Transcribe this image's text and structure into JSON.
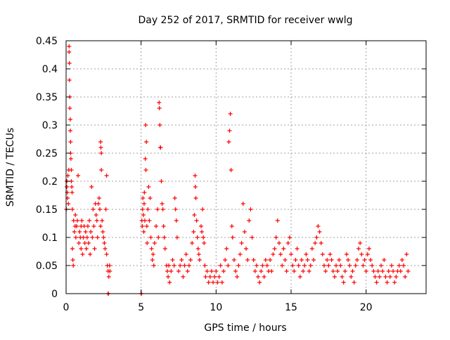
{
  "chart_data": {
    "type": "scatter",
    "title": "Day 252 of 2017, SRMTID for receiver wwlg",
    "xlabel": "GPS time / hours",
    "ylabel": "SRMTID / TECUs",
    "xlim": [
      0,
      24
    ],
    "ylim": [
      0,
      0.45
    ],
    "x_ticks": [
      0,
      5,
      10,
      15,
      20
    ],
    "x_tick_labels": [
      "0",
      "5",
      "10",
      "15",
      "20"
    ],
    "y_ticks": [
      0,
      0.05,
      0.1,
      0.15,
      0.2,
      0.25,
      0.3,
      0.35,
      0.4,
      0.45
    ],
    "y_tick_labels": [
      "0",
      "0.05",
      "0.1",
      "0.15",
      "0.2",
      "0.25",
      "0.3",
      "0.35",
      "0.4",
      "0.45"
    ],
    "grid": true,
    "series": [
      {
        "name": "SRMTID",
        "marker": "plus",
        "color": "#ff0000",
        "points": [
          [
            0.02,
            0.15
          ],
          [
            0.05,
            0.19
          ],
          [
            0.05,
            0.2
          ],
          [
            0.08,
            0.18
          ],
          [
            0.1,
            0.17
          ],
          [
            0.12,
            0.21
          ],
          [
            0.15,
            0.16
          ],
          [
            0.18,
            0.22
          ],
          [
            0.2,
            0.44
          ],
          [
            0.2,
            0.43
          ],
          [
            0.22,
            0.41
          ],
          [
            0.22,
            0.38
          ],
          [
            0.25,
            0.35
          ],
          [
            0.25,
            0.33
          ],
          [
            0.28,
            0.31
          ],
          [
            0.28,
            0.29
          ],
          [
            0.3,
            0.25
          ],
          [
            0.3,
            0.27
          ],
          [
            0.32,
            0.24
          ],
          [
            0.35,
            0.22
          ],
          [
            0.35,
            0.2
          ],
          [
            0.38,
            0.19
          ],
          [
            0.4,
            0.18
          ],
          [
            0.42,
            0.15
          ],
          [
            0.42,
            0.08
          ],
          [
            0.45,
            0.06
          ],
          [
            0.48,
            0.05
          ],
          [
            0.5,
            0.13
          ],
          [
            0.55,
            0.11
          ],
          [
            0.6,
            0.12
          ],
          [
            0.62,
            0.14
          ],
          [
            0.65,
            0.1
          ],
          [
            0.7,
            0.12
          ],
          [
            0.75,
            0.13
          ],
          [
            0.8,
            0.21
          ],
          [
            0.85,
            0.09
          ],
          [
            0.9,
            0.11
          ],
          [
            0.95,
            0.1
          ],
          [
            1.0,
            0.08
          ],
          [
            1.0,
            0.12
          ],
          [
            1.05,
            0.13
          ],
          [
            1.1,
            0.07
          ],
          [
            1.15,
            0.1
          ],
          [
            1.2,
            0.12
          ],
          [
            1.25,
            0.09
          ],
          [
            1.3,
            0.11
          ],
          [
            1.35,
            0.08
          ],
          [
            1.4,
            0.1
          ],
          [
            1.45,
            0.12
          ],
          [
            1.5,
            0.09
          ],
          [
            1.55,
            0.13
          ],
          [
            1.6,
            0.07
          ],
          [
            1.65,
            0.11
          ],
          [
            1.7,
            0.19
          ],
          [
            1.75,
            0.1
          ],
          [
            1.8,
            0.15
          ],
          [
            1.85,
            0.12
          ],
          [
            1.9,
            0.08
          ],
          [
            1.95,
            0.16
          ],
          [
            2.0,
            0.14
          ],
          [
            2.05,
            0.13
          ],
          [
            2.1,
            0.1
          ],
          [
            2.15,
            0.16
          ],
          [
            2.2,
            0.17
          ],
          [
            2.25,
            0.15
          ],
          [
            2.3,
            0.12
          ],
          [
            2.3,
            0.27
          ],
          [
            2.32,
            0.26
          ],
          [
            2.35,
            0.25
          ],
          [
            2.35,
            0.22
          ],
          [
            2.4,
            0.13
          ],
          [
            2.45,
            0.11
          ],
          [
            2.5,
            0.1
          ],
          [
            2.55,
            0.09
          ],
          [
            2.6,
            0.08
          ],
          [
            2.65,
            0.15
          ],
          [
            2.7,
            0.07
          ],
          [
            2.7,
            0.21
          ],
          [
            2.75,
            0.05
          ],
          [
            2.8,
            0.04
          ],
          [
            2.85,
            0.03
          ],
          [
            2.9,
            0.05
          ],
          [
            2.92,
            0.04
          ],
          [
            2.8,
            0.0
          ],
          [
            2.82,
            0.0
          ],
          [
            5.0,
            0.0
          ],
          [
            5.02,
            0.0
          ],
          [
            5.05,
            0.13
          ],
          [
            5.08,
            0.12
          ],
          [
            5.1,
            0.15
          ],
          [
            5.12,
            0.17
          ],
          [
            5.15,
            0.14
          ],
          [
            5.18,
            0.11
          ],
          [
            5.2,
            0.16
          ],
          [
            5.22,
            0.18
          ],
          [
            5.25,
            0.13
          ],
          [
            5.28,
            0.24
          ],
          [
            5.3,
            0.3
          ],
          [
            5.32,
            0.22
          ],
          [
            5.35,
            0.27
          ],
          [
            5.38,
            0.12
          ],
          [
            5.4,
            0.09
          ],
          [
            5.45,
            0.15
          ],
          [
            5.5,
            0.19
          ],
          [
            5.55,
            0.13
          ],
          [
            5.6,
            0.17
          ],
          [
            5.65,
            0.1
          ],
          [
            5.7,
            0.08
          ],
          [
            5.75,
            0.06
          ],
          [
            5.8,
            0.07
          ],
          [
            5.85,
            0.05
          ],
          [
            5.9,
            0.09
          ],
          [
            6.0,
            0.12
          ],
          [
            6.1,
            0.15
          ],
          [
            6.15,
            0.1
          ],
          [
            6.2,
            0.34
          ],
          [
            6.22,
            0.33
          ],
          [
            6.25,
            0.3
          ],
          [
            6.28,
            0.26
          ],
          [
            6.3,
            0.26
          ],
          [
            6.35,
            0.2
          ],
          [
            6.4,
            0.16
          ],
          [
            6.45,
            0.15
          ],
          [
            6.5,
            0.12
          ],
          [
            6.55,
            0.1
          ],
          [
            6.6,
            0.08
          ],
          [
            6.7,
            0.05
          ],
          [
            6.75,
            0.04
          ],
          [
            6.8,
            0.03
          ],
          [
            6.85,
            0.05
          ],
          [
            6.9,
            0.02
          ],
          [
            7.0,
            0.04
          ],
          [
            7.1,
            0.06
          ],
          [
            7.2,
            0.05
          ],
          [
            7.25,
            0.17
          ],
          [
            7.3,
            0.15
          ],
          [
            7.35,
            0.13
          ],
          [
            7.4,
            0.1
          ],
          [
            7.5,
            0.04
          ],
          [
            7.6,
            0.05
          ],
          [
            7.7,
            0.06
          ],
          [
            7.8,
            0.03
          ],
          [
            7.9,
            0.05
          ],
          [
            8.0,
            0.07
          ],
          [
            8.1,
            0.04
          ],
          [
            8.2,
            0.05
          ],
          [
            8.3,
            0.06
          ],
          [
            8.4,
            0.09
          ],
          [
            8.5,
            0.11
          ],
          [
            8.55,
            0.14
          ],
          [
            8.6,
            0.21
          ],
          [
            8.62,
            0.19
          ],
          [
            8.65,
            0.17
          ],
          [
            8.7,
            0.13
          ],
          [
            8.75,
            0.1
          ],
          [
            8.8,
            0.08
          ],
          [
            8.85,
            0.07
          ],
          [
            8.9,
            0.06
          ],
          [
            9.0,
            0.12
          ],
          [
            9.05,
            0.11
          ],
          [
            9.1,
            0.15
          ],
          [
            9.15,
            0.1
          ],
          [
            9.2,
            0.09
          ],
          [
            9.25,
            0.05
          ],
          [
            9.3,
            0.03
          ],
          [
            9.4,
            0.04
          ],
          [
            9.5,
            0.02
          ],
          [
            9.6,
            0.03
          ],
          [
            9.7,
            0.04
          ],
          [
            9.8,
            0.02
          ],
          [
            9.9,
            0.03
          ],
          [
            10.0,
            0.04
          ],
          [
            10.1,
            0.02
          ],
          [
            10.2,
            0.03
          ],
          [
            10.3,
            0.05
          ],
          [
            10.4,
            0.02
          ],
          [
            10.5,
            0.04
          ],
          [
            10.6,
            0.06
          ],
          [
            10.7,
            0.08
          ],
          [
            10.8,
            0.05
          ],
          [
            10.85,
            0.27
          ],
          [
            10.9,
            0.29
          ],
          [
            10.95,
            0.32
          ],
          [
            11.0,
            0.22
          ],
          [
            11.05,
            0.12
          ],
          [
            11.1,
            0.1
          ],
          [
            11.2,
            0.06
          ],
          [
            11.3,
            0.04
          ],
          [
            11.4,
            0.03
          ],
          [
            11.5,
            0.05
          ],
          [
            11.6,
            0.07
          ],
          [
            11.7,
            0.09
          ],
          [
            11.8,
            0.16
          ],
          [
            11.9,
            0.11
          ],
          [
            12.0,
            0.08
          ],
          [
            12.1,
            0.06
          ],
          [
            12.2,
            0.13
          ],
          [
            12.3,
            0.15
          ],
          [
            12.4,
            0.1
          ],
          [
            12.5,
            0.06
          ],
          [
            12.6,
            0.04
          ],
          [
            12.7,
            0.05
          ],
          [
            12.8,
            0.03
          ],
          [
            12.9,
            0.02
          ],
          [
            13.0,
            0.04
          ],
          [
            13.1,
            0.05
          ],
          [
            13.2,
            0.03
          ],
          [
            13.3,
            0.06
          ],
          [
            13.4,
            0.05
          ],
          [
            13.5,
            0.04
          ],
          [
            13.6,
            0.06
          ],
          [
            13.7,
            0.04
          ],
          [
            13.8,
            0.07
          ],
          [
            13.9,
            0.08
          ],
          [
            14.0,
            0.1
          ],
          [
            14.1,
            0.13
          ],
          [
            14.2,
            0.09
          ],
          [
            14.3,
            0.07
          ],
          [
            14.4,
            0.05
          ],
          [
            14.5,
            0.08
          ],
          [
            14.6,
            0.06
          ],
          [
            14.7,
            0.04
          ],
          [
            14.8,
            0.09
          ],
          [
            14.9,
            0.1
          ],
          [
            15.0,
            0.07
          ],
          [
            15.1,
            0.05
          ],
          [
            15.2,
            0.04
          ],
          [
            15.3,
            0.06
          ],
          [
            15.4,
            0.08
          ],
          [
            15.5,
            0.05
          ],
          [
            15.6,
            0.03
          ],
          [
            15.7,
            0.06
          ],
          [
            15.8,
            0.04
          ],
          [
            15.9,
            0.05
          ],
          [
            16.0,
            0.07
          ],
          [
            16.1,
            0.06
          ],
          [
            16.2,
            0.04
          ],
          [
            16.3,
            0.05
          ],
          [
            16.4,
            0.08
          ],
          [
            16.5,
            0.06
          ],
          [
            16.6,
            0.09
          ],
          [
            16.7,
            0.1
          ],
          [
            16.8,
            0.12
          ],
          [
            16.9,
            0.11
          ],
          [
            17.0,
            0.09
          ],
          [
            17.1,
            0.07
          ],
          [
            17.2,
            0.05
          ],
          [
            17.3,
            0.04
          ],
          [
            17.4,
            0.06
          ],
          [
            17.5,
            0.05
          ],
          [
            17.6,
            0.07
          ],
          [
            17.7,
            0.06
          ],
          [
            17.8,
            0.04
          ],
          [
            17.9,
            0.03
          ],
          [
            18.0,
            0.05
          ],
          [
            18.1,
            0.04
          ],
          [
            18.2,
            0.06
          ],
          [
            18.3,
            0.05
          ],
          [
            18.4,
            0.03
          ],
          [
            18.5,
            0.02
          ],
          [
            18.6,
            0.04
          ],
          [
            18.7,
            0.07
          ],
          [
            18.8,
            0.06
          ],
          [
            18.9,
            0.05
          ],
          [
            19.0,
            0.03
          ],
          [
            19.1,
            0.04
          ],
          [
            19.2,
            0.02
          ],
          [
            19.3,
            0.05
          ],
          [
            19.4,
            0.06
          ],
          [
            19.5,
            0.08
          ],
          [
            19.6,
            0.09
          ],
          [
            19.7,
            0.07
          ],
          [
            19.8,
            0.05
          ],
          [
            19.9,
            0.06
          ],
          [
            20.0,
            0.04
          ],
          [
            20.1,
            0.07
          ],
          [
            20.2,
            0.08
          ],
          [
            20.3,
            0.06
          ],
          [
            20.4,
            0.05
          ],
          [
            20.5,
            0.04
          ],
          [
            20.6,
            0.03
          ],
          [
            20.7,
            0.02
          ],
          [
            20.8,
            0.04
          ],
          [
            20.9,
            0.03
          ],
          [
            21.0,
            0.05
          ],
          [
            21.1,
            0.04
          ],
          [
            21.2,
            0.06
          ],
          [
            21.3,
            0.03
          ],
          [
            21.4,
            0.02
          ],
          [
            21.5,
            0.04
          ],
          [
            21.6,
            0.03
          ],
          [
            21.7,
            0.05
          ],
          [
            21.8,
            0.04
          ],
          [
            21.9,
            0.02
          ],
          [
            22.0,
            0.03
          ],
          [
            22.1,
            0.04
          ],
          [
            22.2,
            0.05
          ],
          [
            22.3,
            0.04
          ],
          [
            22.4,
            0.06
          ],
          [
            22.5,
            0.05
          ],
          [
            22.6,
            0.03
          ],
          [
            22.7,
            0.07
          ],
          [
            22.8,
            0.04
          ]
        ]
      }
    ]
  }
}
